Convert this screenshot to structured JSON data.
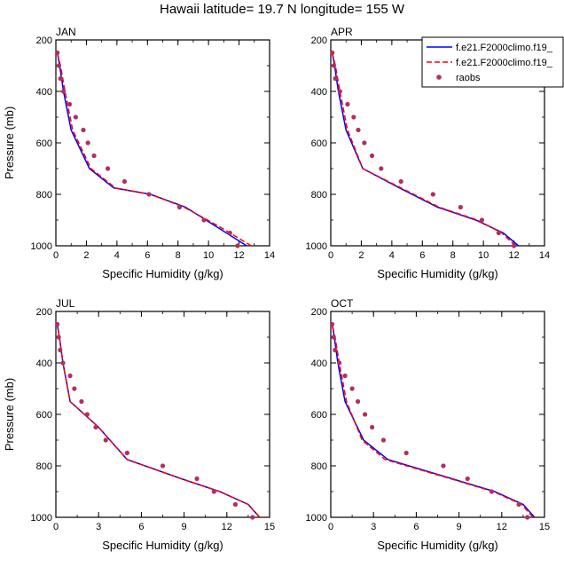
{
  "title": "Hawaii  latitude= 19.7 N longitude= 155 W",
  "legend": {
    "entries": [
      {
        "label": "f.e21.F2000climo.f19_",
        "style": "solid",
        "color": "#0000ff"
      },
      {
        "label": "f.e21.F2000climo.f19_",
        "style": "dashed",
        "color": "#ff0000"
      },
      {
        "label": "raobs",
        "style": "marker",
        "color": "#b03060"
      }
    ]
  },
  "chart_data": [
    {
      "type": "line",
      "panel_label": "JAN",
      "xlabel": "Specific Humidity (g/kg)",
      "ylabel": "Pressure (mb)",
      "xlim": [
        0,
        14
      ],
      "xticks": [
        "0",
        "2",
        "4",
        "6",
        "8",
        "10",
        "12",
        "14"
      ],
      "xtick_values": [
        0,
        2,
        4,
        6,
        8,
        10,
        12,
        14
      ],
      "ylim": [
        1000,
        200
      ],
      "yticks": [
        "200",
        "400",
        "600",
        "800",
        "1000"
      ],
      "ytick_values": [
        200,
        400,
        600,
        800,
        1000
      ],
      "series": [
        {
          "style": "solid",
          "color": "#0000ff",
          "x": [
            12.5,
            10.5,
            8.5,
            6.2,
            3.8,
            2.2,
            1.0,
            0.5,
            0.25,
            0.1
          ],
          "y": [
            1000,
            925,
            850,
            800,
            775,
            700,
            550,
            400,
            300,
            250
          ]
        },
        {
          "style": "dashed",
          "color": "#ff0000",
          "x": [
            12.8,
            10.7,
            8.4,
            6.2,
            3.9,
            2.3,
            1.1,
            0.6,
            0.3,
            0.1
          ],
          "y": [
            1000,
            925,
            850,
            800,
            775,
            700,
            550,
            400,
            300,
            250
          ]
        },
        {
          "style": "marker",
          "color": "#b03060",
          "x": [
            11.9,
            11.4,
            9.7,
            8.1,
            6.1,
            4.5,
            3.4,
            2.5,
            2.1,
            1.8,
            1.3,
            0.9,
            0.5,
            0.3,
            0.2,
            0.1
          ],
          "y": [
            1000,
            950,
            900,
            850,
            800,
            750,
            700,
            650,
            600,
            550,
            500,
            450,
            400,
            350,
            300,
            250
          ]
        }
      ]
    },
    {
      "type": "line",
      "panel_label": "APR",
      "xlabel": "Specific Humidity (g/kg)",
      "ylabel": "",
      "xlim": [
        0,
        14
      ],
      "xticks": [
        "0",
        "2",
        "4",
        "6",
        "8",
        "10",
        "12",
        "14"
      ],
      "xtick_values": [
        0,
        2,
        4,
        6,
        8,
        10,
        12,
        14
      ],
      "ylim": [
        1000,
        200
      ],
      "yticks": [
        "200",
        "400",
        "600",
        "800",
        "1000"
      ],
      "ytick_values": [
        200,
        400,
        600,
        800,
        1000
      ],
      "series": [
        {
          "style": "solid",
          "color": "#0000ff",
          "x": [
            12.3,
            11.3,
            9.5,
            7.0,
            4.5,
            2.1,
            1.0,
            0.5,
            0.25,
            0.1
          ],
          "y": [
            1000,
            950,
            900,
            850,
            775,
            700,
            550,
            400,
            300,
            250
          ]
        },
        {
          "style": "dashed",
          "color": "#ff0000",
          "x": [
            12.1,
            11.2,
            9.6,
            7.1,
            4.6,
            2.1,
            1.1,
            0.6,
            0.3,
            0.1
          ],
          "y": [
            1000,
            950,
            900,
            850,
            775,
            700,
            550,
            400,
            300,
            250
          ]
        },
        {
          "style": "marker",
          "color": "#b03060",
          "x": [
            12.0,
            11.0,
            9.9,
            8.5,
            6.7,
            4.6,
            3.3,
            2.7,
            2.2,
            1.8,
            1.5,
            1.1,
            0.6,
            0.3,
            0.2,
            0.1
          ],
          "y": [
            1000,
            950,
            900,
            850,
            800,
            750,
            700,
            650,
            600,
            550,
            500,
            450,
            400,
            350,
            300,
            250
          ]
        }
      ]
    },
    {
      "type": "line",
      "panel_label": "JUL",
      "xlabel": "Specific Humidity (g/kg)",
      "ylabel": "Pressure (mb)",
      "xlim": [
        0,
        15
      ],
      "xticks": [
        "0",
        "3",
        "6",
        "9",
        "12",
        "15"
      ],
      "xtick_values": [
        0,
        3,
        6,
        9,
        12,
        15
      ],
      "ylim": [
        1000,
        200
      ],
      "yticks": [
        "200",
        "400",
        "600",
        "800",
        "1000"
      ],
      "ytick_values": [
        200,
        400,
        600,
        800,
        1000
      ],
      "series": [
        {
          "style": "solid",
          "color": "#0000ff",
          "x": [
            14.3,
            13.5,
            11.5,
            8.8,
            5.0,
            3.0,
            1.0,
            0.5,
            0.25,
            0.1
          ],
          "y": [
            1000,
            950,
            900,
            850,
            775,
            650,
            550,
            400,
            300,
            250
          ]
        },
        {
          "style": "dashed",
          "color": "#ff0000",
          "x": [
            14.3,
            13.5,
            11.5,
            8.8,
            5.0,
            3.0,
            1.0,
            0.5,
            0.25,
            0.1
          ],
          "y": [
            1000,
            950,
            900,
            850,
            775,
            650,
            550,
            400,
            300,
            250
          ]
        },
        {
          "style": "marker",
          "color": "#b03060",
          "x": [
            13.8,
            12.6,
            11.1,
            9.9,
            7.5,
            5.0,
            3.5,
            2.8,
            2.2,
            1.8,
            1.3,
            1.0,
            0.5,
            0.3,
            0.2,
            0.1
          ],
          "y": [
            1000,
            950,
            900,
            850,
            800,
            750,
            700,
            650,
            600,
            550,
            500,
            450,
            400,
            350,
            300,
            250
          ]
        }
      ]
    },
    {
      "type": "line",
      "panel_label": "OCT",
      "xlabel": "Specific Humidity (g/kg)",
      "ylabel": "",
      "xlim": [
        0,
        15
      ],
      "xticks": [
        "0",
        "3",
        "6",
        "9",
        "12",
        "15"
      ],
      "xtick_values": [
        0,
        3,
        6,
        9,
        12,
        15
      ],
      "ylim": [
        1000,
        200
      ],
      "yticks": [
        "200",
        "400",
        "600",
        "800",
        "1000"
      ],
      "ytick_values": [
        200,
        400,
        600,
        800,
        1000
      ],
      "series": [
        {
          "style": "solid",
          "color": "#0000ff",
          "x": [
            14.3,
            13.5,
            11.5,
            8.5,
            4.0,
            2.3,
            1.0,
            0.5,
            0.25,
            0.1
          ],
          "y": [
            1000,
            950,
            900,
            850,
            775,
            700,
            550,
            400,
            300,
            250
          ]
        },
        {
          "style": "dashed",
          "color": "#ff0000",
          "x": [
            14.2,
            13.4,
            11.4,
            8.4,
            3.8,
            2.2,
            1.1,
            0.6,
            0.3,
            0.1
          ],
          "y": [
            1000,
            950,
            900,
            850,
            775,
            700,
            550,
            400,
            300,
            250
          ]
        },
        {
          "style": "marker",
          "color": "#b03060",
          "x": [
            13.8,
            13.2,
            11.3,
            9.6,
            7.9,
            5.3,
            3.7,
            2.9,
            2.4,
            1.9,
            1.5,
            1.0,
            0.6,
            0.3,
            0.2,
            0.1
          ],
          "y": [
            1000,
            950,
            900,
            850,
            800,
            750,
            700,
            650,
            600,
            550,
            500,
            450,
            400,
            350,
            300,
            250
          ]
        }
      ]
    }
  ]
}
